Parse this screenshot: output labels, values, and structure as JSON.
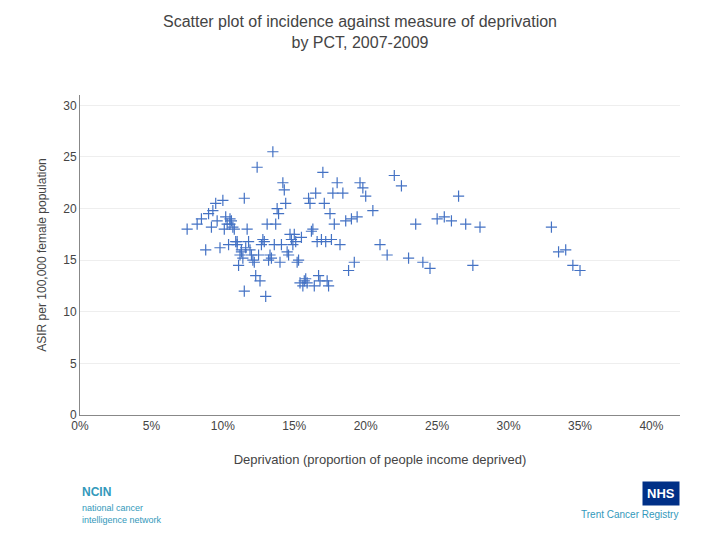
{
  "chart_data": {
    "type": "scatter",
    "title": "Scatter plot of incidence against measure of deprivation",
    "subtitle": "by PCT, 2007-2009",
    "x_label": "Deprivation (proportion of people income deprived)",
    "y_label": "ASIR per 100,000 female population",
    "annotations": [
      "NCIN",
      "national cancer\nintelligence network",
      "NHS",
      "Trent Cancer Registry"
    ],
    "xlim": [
      0.0,
      0.42
    ],
    "ylim": [
      0,
      31
    ],
    "xticks": [
      {
        "value": 0.0,
        "label": "0%"
      },
      {
        "value": 0.05,
        "label": "5%"
      },
      {
        "value": 0.1,
        "label": "10%"
      },
      {
        "value": 0.15,
        "label": "15%"
      },
      {
        "value": 0.2,
        "label": "20%"
      },
      {
        "value": 0.25,
        "label": "25%"
      },
      {
        "value": 0.3,
        "label": "30%"
      },
      {
        "value": 0.35,
        "label": "35%"
      },
      {
        "value": 0.4,
        "label": "40%"
      }
    ],
    "yticks": [
      0,
      5,
      10,
      15,
      20,
      25,
      30
    ],
    "grid": "y",
    "color": "#4472C4",
    "marker": "+",
    "x": [
      0.075,
      0.082,
      0.085,
      0.088,
      0.09,
      0.092,
      0.093,
      0.095,
      0.096,
      0.098,
      0.1,
      0.101,
      0.102,
      0.103,
      0.104,
      0.105,
      0.105,
      0.106,
      0.107,
      0.108,
      0.109,
      0.11,
      0.11,
      0.111,
      0.112,
      0.113,
      0.113,
      0.114,
      0.115,
      0.115,
      0.116,
      0.117,
      0.118,
      0.119,
      0.12,
      0.121,
      0.122,
      0.123,
      0.124,
      0.125,
      0.126,
      0.127,
      0.128,
      0.129,
      0.13,
      0.131,
      0.132,
      0.133,
      0.134,
      0.135,
      0.136,
      0.137,
      0.138,
      0.139,
      0.14,
      0.141,
      0.142,
      0.143,
      0.144,
      0.145,
      0.146,
      0.147,
      0.148,
      0.149,
      0.15,
      0.151,
      0.152,
      0.153,
      0.154,
      0.155,
      0.156,
      0.157,
      0.158,
      0.159,
      0.16,
      0.161,
      0.162,
      0.163,
      0.164,
      0.165,
      0.166,
      0.167,
      0.168,
      0.169,
      0.17,
      0.171,
      0.172,
      0.173,
      0.174,
      0.175,
      0.176,
      0.177,
      0.178,
      0.18,
      0.182,
      0.184,
      0.186,
      0.188,
      0.19,
      0.192,
      0.194,
      0.196,
      0.198,
      0.2,
      0.205,
      0.21,
      0.215,
      0.22,
      0.225,
      0.23,
      0.235,
      0.24,
      0.245,
      0.25,
      0.255,
      0.26,
      0.265,
      0.27,
      0.275,
      0.28,
      0.33,
      0.335,
      0.34,
      0.345,
      0.35
    ],
    "values": [
      18.0,
      18.5,
      19.0,
      16.0,
      19.5,
      18.2,
      19.8,
      20.5,
      18.8,
      16.2,
      20.8,
      18.0,
      19.2,
      18.5,
      16.5,
      18.5,
      19.0,
      18.8,
      18.2,
      18.0,
      16.8,
      16.5,
      16.8,
      14.5,
      15.5,
      15.8,
      16.0,
      15.2,
      21.0,
      12.0,
      16.2,
      18.0,
      16.8,
      16.0,
      15.5,
      15.0,
      14.8,
      13.5,
      24.0,
      15.5,
      13.0,
      16.5,
      17.0,
      16.8,
      11.5,
      18.5,
      15.0,
      15.5,
      15.2,
      25.5,
      16.5,
      18.5,
      20.0,
      19.5,
      14.8,
      16.5,
      22.5,
      21.8,
      20.5,
      15.8,
      15.5,
      17.5,
      17.0,
      16.5,
      17.5,
      16.8,
      14.8,
      15.0,
      12.8,
      17.2,
      12.5,
      13.0,
      13.2,
      12.8,
      21.0,
      20.5,
      17.8,
      18.0,
      12.5,
      21.5,
      16.8,
      13.5,
      13.0,
      17.0,
      23.5,
      20.5,
      16.8,
      13.0,
      12.5,
      19.5,
      17.0,
      21.5,
      18.5,
      22.5,
      16.5,
      21.5,
      18.8,
      14.0,
      19.0,
      14.8,
      19.2,
      22.5,
      22.0,
      21.2,
      19.8,
      16.5,
      15.5,
      23.2,
      22.2,
      15.2,
      18.5,
      14.8,
      14.2,
      19.0,
      19.2,
      18.8,
      21.2,
      18.5,
      14.5,
      18.2,
      18.2,
      15.8,
      16.0,
      14.5,
      14.0
    ]
  }
}
